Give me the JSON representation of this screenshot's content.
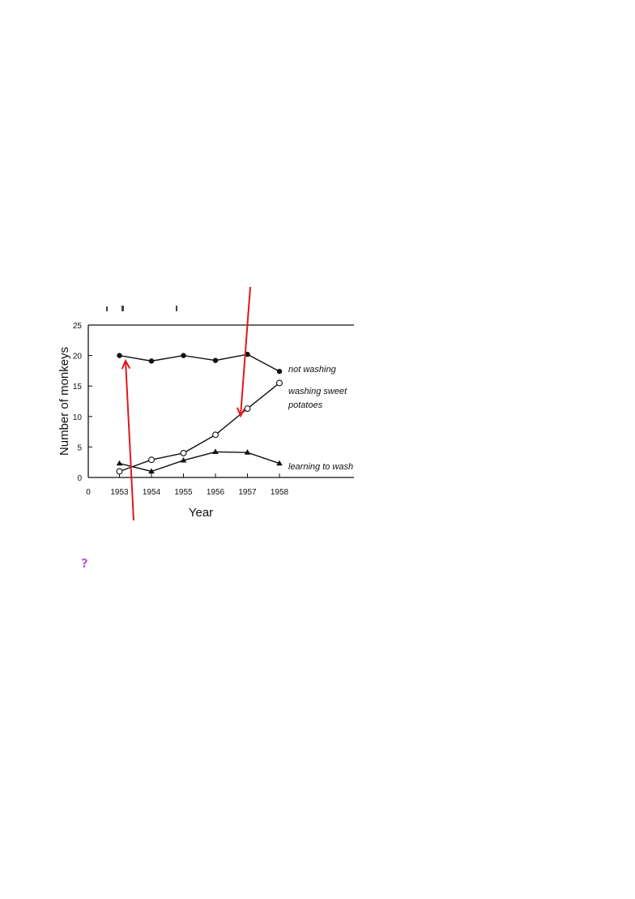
{
  "chart_data": {
    "type": "line",
    "x": [
      1953,
      1954,
      1955,
      1956,
      1957,
      1958
    ],
    "categories": [
      "1953",
      "1954",
      "1955",
      "1956",
      "1957",
      "1958"
    ],
    "x_origin_label": "0",
    "xlabel": "Year",
    "ylabel": "Number of monkeys",
    "ylim": [
      0,
      25
    ],
    "yticks": [
      0,
      5,
      10,
      15,
      20,
      25
    ],
    "grid": false,
    "legend": "inline labels at right end of lines",
    "series": [
      {
        "name": "not washing",
        "marker": "filled-circle",
        "values": [
          20,
          19.1,
          20,
          19.2,
          20.2,
          17.4
        ]
      },
      {
        "name": "washing sweet potatoes",
        "label_lines": [
          "washing sweet",
          "potatoes"
        ],
        "marker": "open-circle",
        "values": [
          1,
          2.9,
          4,
          7,
          11.3,
          15.5
        ]
      },
      {
        "name": "learning to wash",
        "marker": "filled-triangle",
        "values": [
          2.3,
          1,
          2.8,
          4.2,
          4.1,
          2.3
        ]
      }
    ],
    "annotations": [
      {
        "kind": "arrow",
        "color": "#e0191f",
        "description": "upward arrow pointing at not washing 1953"
      },
      {
        "kind": "arrow",
        "color": "#e0191f",
        "description": "downward arrow pointing at washing sweet potatoes near 1957"
      }
    ]
  },
  "colors": {
    "line": "#111111",
    "arrow": "#e0191f",
    "help": "#b565d8"
  },
  "help_icon": {
    "name": "question-mark-icon",
    "glyph": "?"
  }
}
